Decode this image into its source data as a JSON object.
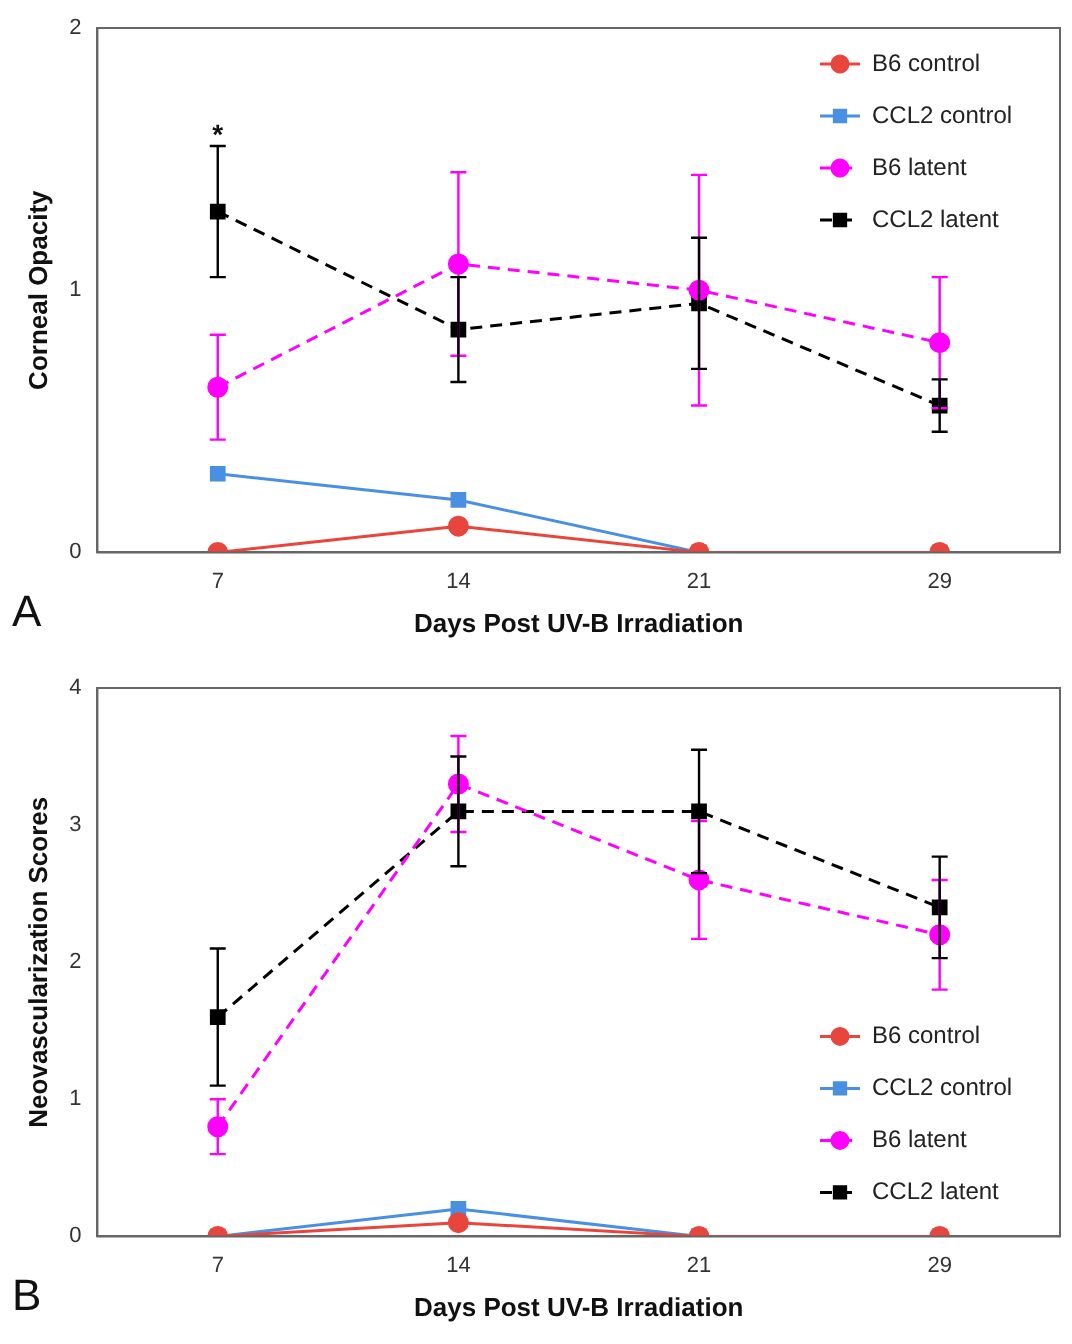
{
  "chart_data": [
    {
      "type": "line",
      "xlabel": "Days Post UV-B Irradiation",
      "ylabel": "Corneal Opacity",
      "categories": [
        "7",
        "14",
        "21",
        "29"
      ],
      "ylim": [
        0,
        2
      ],
      "yticks": [
        0,
        1,
        2
      ],
      "grid": false,
      "legend": "top right",
      "series": [
        {
          "name": "B6 control",
          "color": "#e8453c",
          "marker": "circle",
          "line_style": "solid",
          "values": [
            0,
            0.1,
            0,
            0
          ]
        },
        {
          "name": "CCL2 control",
          "color": "#4a90e2",
          "marker": "square",
          "line_style": "solid",
          "values": [
            0.3,
            0.2,
            0,
            0
          ]
        },
        {
          "name": "B6 latent",
          "color": "#ff00ff",
          "marker": "circle",
          "line_style": "dashed",
          "values": [
            0.63,
            1.1,
            1.0,
            0.8
          ],
          "errors": [
            0.2,
            0.35,
            0.44,
            0.25
          ]
        },
        {
          "name": "CCL2 latent",
          "color": "#000000",
          "marker": "square",
          "line_style": "dashed",
          "values": [
            1.3,
            0.85,
            0.95,
            0.56
          ],
          "errors": [
            0.25,
            0.2,
            0.25,
            0.1
          ]
        }
      ],
      "annotations": [
        "A",
        {
          "text": "*",
          "x": "7",
          "y": 1.58
        }
      ]
    },
    {
      "type": "line",
      "xlabel": "Days Post UV-B Irradiation",
      "ylabel": "Neovascularization Scores",
      "categories": [
        "7",
        "14",
        "21",
        "29"
      ],
      "ylim": [
        0,
        4
      ],
      "yticks": [
        0,
        1,
        2,
        3,
        4
      ],
      "grid": false,
      "legend": "bottom right",
      "series": [
        {
          "name": "B6 control",
          "color": "#e8453c",
          "marker": "circle",
          "line_style": "solid",
          "values": [
            0,
            0.1,
            0,
            0
          ]
        },
        {
          "name": "CCL2 control",
          "color": "#4a90e2",
          "marker": "square",
          "line_style": "solid",
          "values": [
            0,
            0.2,
            0,
            0
          ]
        },
        {
          "name": "B6 latent",
          "color": "#ff00ff",
          "marker": "circle",
          "line_style": "dashed",
          "values": [
            0.8,
            3.3,
            2.6,
            2.2
          ],
          "errors": [
            0.2,
            0.35,
            0.43,
            0.4
          ]
        },
        {
          "name": "CCL2 latent",
          "color": "#000000",
          "marker": "square",
          "line_style": "dashed",
          "values": [
            1.6,
            3.1,
            3.1,
            2.4
          ],
          "errors": [
            0.5,
            0.4,
            0.45,
            0.37
          ]
        }
      ],
      "annotations": [
        "B"
      ]
    }
  ]
}
